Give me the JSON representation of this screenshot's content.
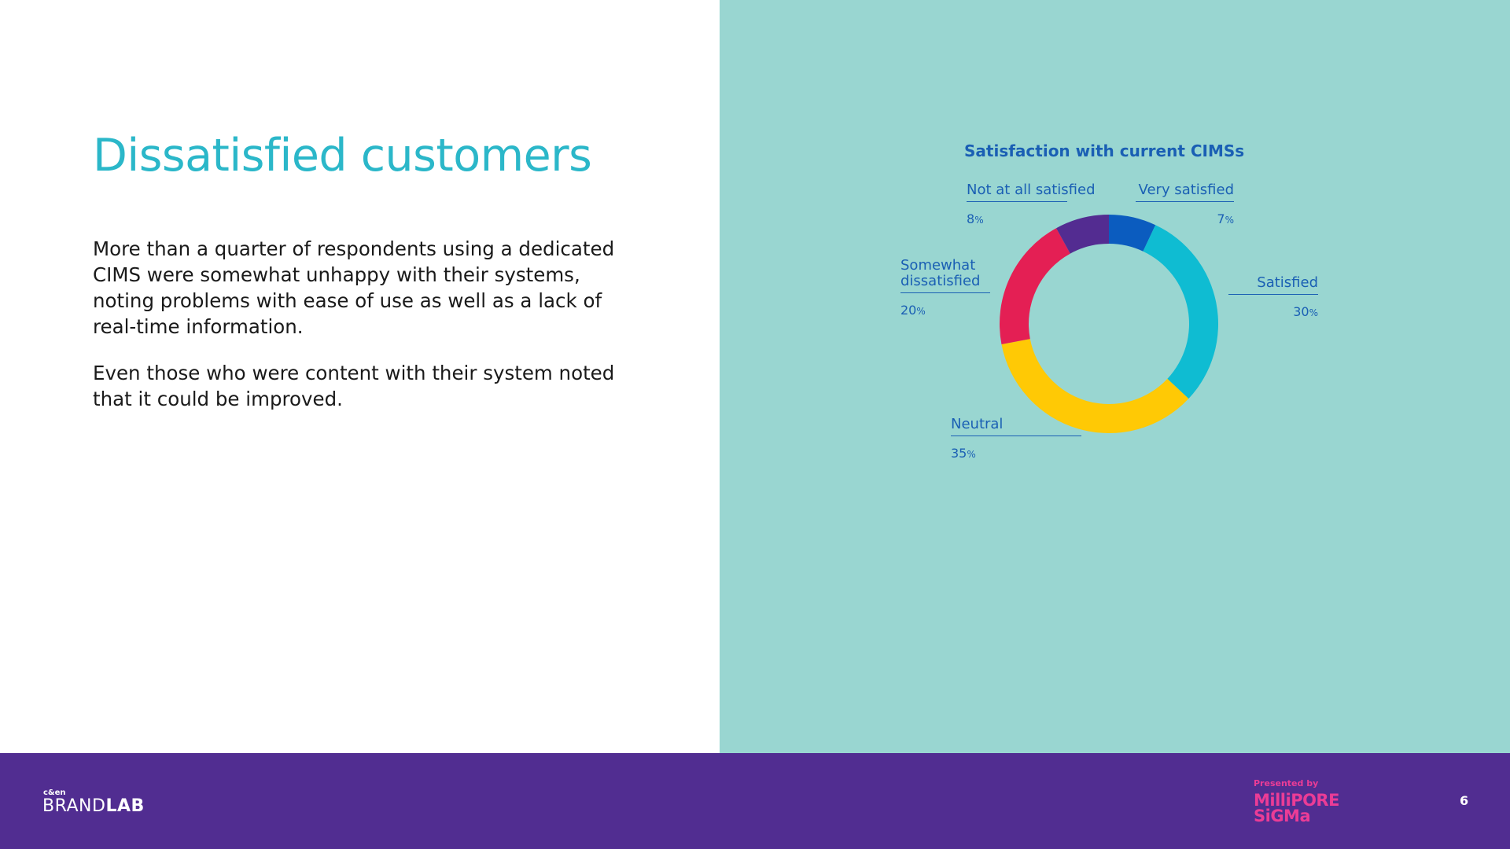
{
  "title": "Dissatisfied customers",
  "paragraphs": [
    "More than a quarter of respondents using a dedicated CIMS were somewhat unhappy with their systems, noting problems with ease of use as well as a lack of real-time information.",
    "Even those who were content with their system noted that it could be improved."
  ],
  "colors": {
    "title": "#2bb7c9",
    "chart_background": "#99d6d1",
    "footer": "#512d91",
    "label_text": "#1a5fb4",
    "sponsor": "#eb3c96"
  },
  "chart_data": {
    "type": "pie",
    "style": "donut",
    "title": "Satisfaction with current CIMSs",
    "unit": "%",
    "slices": [
      {
        "label": "Very satisfied",
        "value": 7,
        "color": "#0b5cbf"
      },
      {
        "label": "Satisfied",
        "value": 30,
        "color": "#0fbcd2"
      },
      {
        "label": "Neutral",
        "value": 35,
        "color": "#ffc905"
      },
      {
        "label": "Somewhat dissatisfied",
        "value": 20,
        "color": "#e41f54"
      },
      {
        "label": "Not at all satisfied",
        "value": 8,
        "color": "#532c91"
      }
    ]
  },
  "footer": {
    "brand_small": "c&en",
    "brand_main_light": "BRAND",
    "brand_main_bold": "LAB",
    "presented_by": "Presented by",
    "sponsor_line1": "MilliPORE",
    "sponsor_line2": "SiGMa",
    "page_number": "6"
  }
}
